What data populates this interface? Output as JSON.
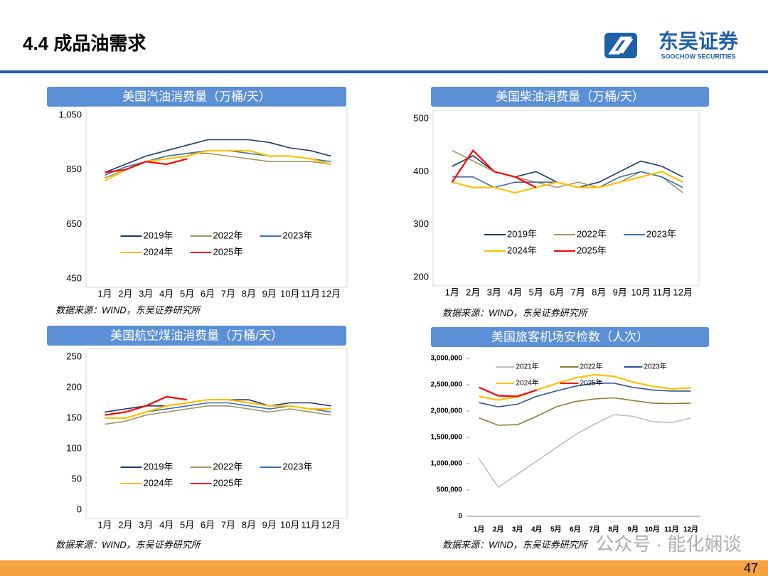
{
  "header": {
    "title": "4.4 成品油需求",
    "brand": "东吴证券",
    "brand_en": "SOOCHOW SECURITIES"
  },
  "footer": {
    "page": "47",
    "watermark": "公众号 · 能化娴谈"
  },
  "chart_data": [
    {
      "type": "line",
      "title": "美国汽油消费量（万桶/天）",
      "source": "数据来源：WIND，东吴证券研究所",
      "categories": [
        "1月",
        "2月",
        "3月",
        "4月",
        "5月",
        "6月",
        "7月",
        "8月",
        "9月",
        "10月",
        "11月",
        "12月"
      ],
      "ylim": [
        450,
        1050
      ],
      "yticks": [
        450,
        650,
        850,
        {
          "value": 1050,
          "label": "1,050"
        }
      ],
      "legend": "lower center",
      "series": [
        {
          "name": "2019年",
          "color": "#1f3864",
          "values": [
            840,
            870,
            900,
            920,
            940,
            960,
            960,
            960,
            950,
            930,
            920,
            900
          ]
        },
        {
          "name": "2022年",
          "color": "#a09868",
          "values": [
            820,
            850,
            880,
            900,
            910,
            910,
            900,
            890,
            880,
            880,
            880,
            870
          ]
        },
        {
          "name": "2023年",
          "color": "#3d6fb0",
          "values": [
            830,
            860,
            880,
            900,
            910,
            920,
            920,
            910,
            900,
            900,
            890,
            880
          ]
        },
        {
          "name": "2024年",
          "color": "#ffc000",
          "values": [
            810,
            850,
            880,
            890,
            900,
            920,
            920,
            920,
            900,
            900,
            890,
            870
          ]
        },
        {
          "name": "2025年",
          "color": "#ff0000",
          "values": [
            840,
            850,
            880,
            870,
            890,
            null,
            null,
            null,
            null,
            null,
            null,
            null
          ]
        }
      ]
    },
    {
      "type": "line",
      "title": "美国柴油消费量（万桶/天）",
      "source": "数据来源：WIND，东吴证券研究所",
      "categories": [
        "1月",
        "2月",
        "3月",
        "4月",
        "5月",
        "6月",
        "7月",
        "8月",
        "9月",
        "10月",
        "11月",
        "12月"
      ],
      "ylim": [
        200,
        500
      ],
      "yticks": [
        200,
        300,
        400,
        500
      ],
      "legend": "lower right",
      "series": [
        {
          "name": "2019年",
          "color": "#1f3864",
          "values": [
            410,
            430,
            400,
            390,
            400,
            380,
            370,
            380,
            400,
            420,
            410,
            390
          ]
        },
        {
          "name": "2022年",
          "color": "#a09868",
          "values": [
            440,
            420,
            400,
            390,
            380,
            370,
            380,
            370,
            380,
            400,
            390,
            360
          ]
        },
        {
          "name": "2023年",
          "color": "#3d6fb0",
          "values": [
            390,
            390,
            370,
            380,
            380,
            380,
            370,
            370,
            390,
            400,
            390,
            370
          ]
        },
        {
          "name": "2024年",
          "color": "#ffc000",
          "values": [
            380,
            370,
            370,
            360,
            370,
            380,
            370,
            370,
            380,
            390,
            400,
            380
          ]
        },
        {
          "name": "2025年",
          "color": "#ff0000",
          "values": [
            380,
            440,
            400,
            390,
            370,
            null,
            null,
            null,
            null,
            null,
            null,
            null
          ]
        }
      ]
    },
    {
      "type": "line",
      "title": "美国航空煤油消费量（万桶/天）",
      "source": "数据来源：WIND，东吴证券研究所",
      "categories": [
        "1月",
        "2月",
        "3月",
        "4月",
        "5月",
        "6月",
        "7月",
        "8月",
        "9月",
        "10月",
        "11月",
        "12月"
      ],
      "ylim": [
        0,
        250
      ],
      "yticks": [
        0,
        50,
        100,
        150,
        200,
        250
      ],
      "legend": "lower center",
      "series": [
        {
          "name": "2019年",
          "color": "#1f3864",
          "values": [
            160,
            165,
            170,
            170,
            175,
            180,
            180,
            180,
            170,
            175,
            175,
            170
          ]
        },
        {
          "name": "2022年",
          "color": "#a09868",
          "values": [
            140,
            145,
            155,
            160,
            165,
            170,
            170,
            165,
            160,
            165,
            160,
            155
          ]
        },
        {
          "name": "2023年",
          "color": "#3d6fb0",
          "values": [
            150,
            150,
            160,
            165,
            170,
            175,
            175,
            170,
            165,
            170,
            165,
            160
          ]
        },
        {
          "name": "2024年",
          "color": "#ffc000",
          "values": [
            150,
            150,
            160,
            170,
            175,
            180,
            180,
            175,
            170,
            170,
            165,
            165
          ]
        },
        {
          "name": "2025年",
          "color": "#ff0000",
          "values": [
            155,
            160,
            170,
            185,
            180,
            null,
            null,
            null,
            null,
            null,
            null,
            null
          ]
        }
      ]
    },
    {
      "type": "line",
      "title": "美国旅客机场安检数（人次）",
      "source": "数据来源：WIND，东吴证券研究所",
      "categories": [
        "1月",
        "2月",
        "3月",
        "4月",
        "5月",
        "6月",
        "7月",
        "8月",
        "9月",
        "10月",
        "11月",
        "12月"
      ],
      "ylim": [
        0,
        3000000
      ],
      "yticks": [
        0,
        {
          "value": 500000,
          "label": "500,000"
        },
        {
          "value": 1000000,
          "label": "1,000,000"
        },
        {
          "value": 1500000,
          "label": "1,500,000"
        },
        {
          "value": 2000000,
          "label": "2,000,000"
        },
        {
          "value": 2500000,
          "label": "2,500,000"
        },
        {
          "value": 3000000,
          "label": "3,000,000"
        }
      ],
      "legend": "upper center",
      "series": [
        {
          "name": "2021年",
          "color": "#bfbfbf",
          "values": [
            1100000,
            550000,
            800000,
            1050000,
            1300000,
            1550000,
            1750000,
            1930000,
            1900000,
            1800000,
            1780000,
            1870000
          ]
        },
        {
          "name": "2022年",
          "color": "#8b7d3a",
          "values": [
            1870000,
            1730000,
            1740000,
            1900000,
            2080000,
            2180000,
            2230000,
            2250000,
            2200000,
            2150000,
            2140000,
            2150000
          ]
        },
        {
          "name": "2023年",
          "color": "#2f5597",
          "values": [
            2160000,
            2080000,
            2130000,
            2280000,
            2380000,
            2470000,
            2530000,
            2530000,
            2450000,
            2400000,
            2380000,
            2380000
          ]
        },
        {
          "name": "2024年",
          "color": "#ffc000",
          "values": [
            2280000,
            2210000,
            2270000,
            2400000,
            2520000,
            2630000,
            2690000,
            2660000,
            2550000,
            2470000,
            2420000,
            2440000
          ]
        },
        {
          "name": "2025年",
          "color": "#ff0000",
          "values": [
            2450000,
            2290000,
            2280000,
            2400000,
            null,
            null,
            null,
            null,
            null,
            null,
            null,
            null
          ]
        }
      ]
    }
  ]
}
